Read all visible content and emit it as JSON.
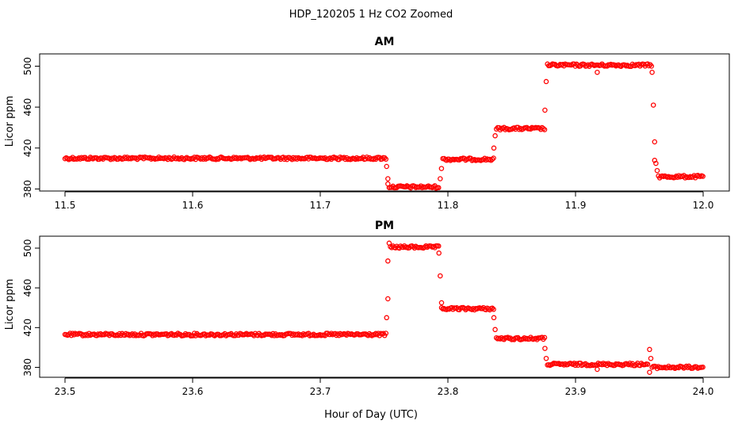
{
  "figure": {
    "title": "HDP_120205  1 Hz CO2 Zoomed",
    "xlabel": "Hour of Day (UTC)"
  },
  "chart_data": [
    {
      "type": "scatter",
      "title": "AM",
      "xlabel": "",
      "ylabel": "Licor ppm",
      "xlim": [
        11.5,
        12.0
      ],
      "ylim": [
        378,
        512
      ],
      "xticks": [
        "11.5",
        "11.6",
        "11.7",
        "11.8",
        "11.9",
        "12.0"
      ],
      "yticks": [
        "380",
        "420",
        "460",
        "500"
      ],
      "marker_color": "#ff0000",
      "series": [
        {
          "segments": [
            {
              "x": [
                11.5,
                11.752
              ],
              "y": 410
            },
            {
              "x": [
                11.754,
                11.793
              ],
              "y": 382
            },
            {
              "x": [
                11.796,
                11.836
              ],
              "y": 409
            },
            {
              "x": [
                11.838,
                11.876
              ],
              "y": 439
            },
            {
              "x": [
                11.878,
                11.96
              ],
              "y": 501
            },
            {
              "x": [
                11.965,
                12.0
              ],
              "y": 392
            }
          ],
          "transitions": [
            {
              "x": 11.752,
              "y": 402
            },
            {
              "x": 11.753,
              "y": 390
            },
            {
              "x": 11.753,
              "y": 385
            },
            {
              "x": 11.794,
              "y": 390
            },
            {
              "x": 11.795,
              "y": 400
            },
            {
              "x": 11.836,
              "y": 420
            },
            {
              "x": 11.837,
              "y": 432
            },
            {
              "x": 11.876,
              "y": 457
            },
            {
              "x": 11.877,
              "y": 485
            },
            {
              "x": 11.917,
              "y": 494
            },
            {
              "x": 11.96,
              "y": 494
            },
            {
              "x": 11.961,
              "y": 462
            },
            {
              "x": 11.962,
              "y": 426
            },
            {
              "x": 11.962,
              "y": 408
            },
            {
              "x": 11.963,
              "y": 405
            },
            {
              "x": 11.964,
              "y": 398
            }
          ]
        }
      ]
    },
    {
      "type": "scatter",
      "title": "PM",
      "xlabel": "",
      "ylabel": "Licor ppm",
      "xlim": [
        23.5,
        24.0
      ],
      "ylim": [
        370,
        512
      ],
      "xticks": [
        "23.5",
        "23.6",
        "23.7",
        "23.8",
        "23.9",
        "24.0"
      ],
      "yticks": [
        "380",
        "420",
        "460",
        "500"
      ],
      "marker_color": "#ff0000",
      "series": [
        {
          "segments": [
            {
              "x": [
                23.5,
                23.752
              ],
              "y": 413
            },
            {
              "x": [
                23.755,
                23.793
              ],
              "y": 501
            },
            {
              "x": [
                23.795,
                23.836
              ],
              "y": 439
            },
            {
              "x": [
                23.838,
                23.876
              ],
              "y": 409
            },
            {
              "x": [
                23.878,
                23.957
              ],
              "y": 383
            },
            {
              "x": [
                23.96,
                24.0
              ],
              "y": 380
            }
          ],
          "transitions": [
            {
              "x": 23.752,
              "y": 430
            },
            {
              "x": 23.753,
              "y": 449
            },
            {
              "x": 23.753,
              "y": 487
            },
            {
              "x": 23.754,
              "y": 505
            },
            {
              "x": 23.793,
              "y": 495
            },
            {
              "x": 23.794,
              "y": 472
            },
            {
              "x": 23.795,
              "y": 445
            },
            {
              "x": 23.836,
              "y": 430
            },
            {
              "x": 23.837,
              "y": 418
            },
            {
              "x": 23.876,
              "y": 399
            },
            {
              "x": 23.877,
              "y": 389
            },
            {
              "x": 23.917,
              "y": 378
            },
            {
              "x": 23.958,
              "y": 375
            },
            {
              "x": 23.958,
              "y": 398
            },
            {
              "x": 23.959,
              "y": 389
            }
          ]
        }
      ]
    }
  ]
}
